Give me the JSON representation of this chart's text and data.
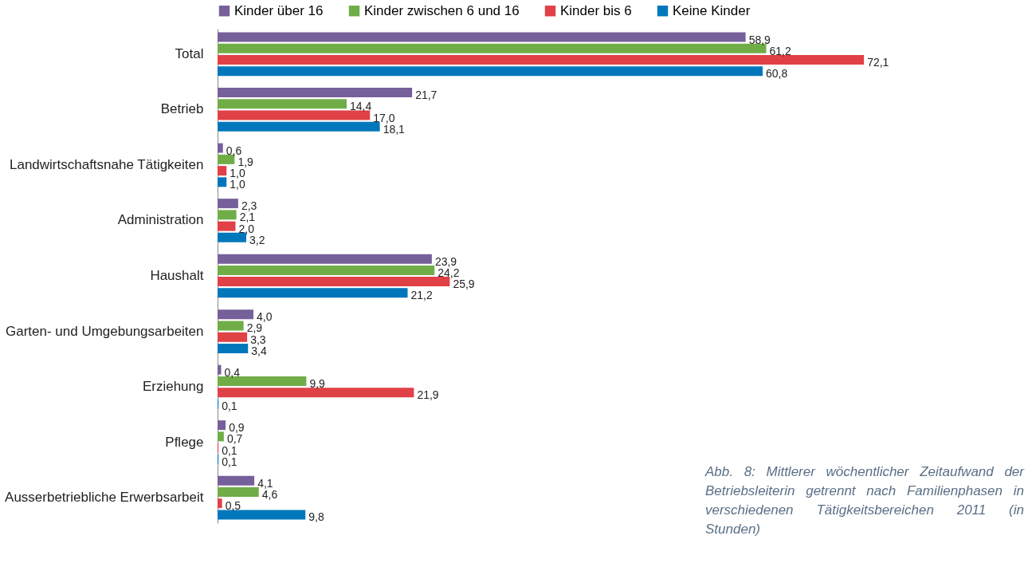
{
  "chart_data": {
    "type": "bar",
    "orientation": "horizontal",
    "legend": "top",
    "tick_labels": "y",
    "grid": false,
    "categories": [
      "Total",
      "Betrieb",
      "Landwirtschaftsnahe Tätigkeiten",
      "Administration",
      "Haushalt",
      "Garten- und Umgebungsarbeiten",
      "Erziehung",
      "Pflege",
      "Ausserbetriebliche Erwerbsarbeit"
    ],
    "series": [
      {
        "name": "Kinder über 16",
        "color": "#76609a",
        "values": [
          58.9,
          21.7,
          0.6,
          2.3,
          23.9,
          4.0,
          0.4,
          0.9,
          4.1
        ],
        "value_labels": [
          "58,9",
          "21,7",
          "0,6",
          "2,3",
          "23,9",
          "4,0",
          "0,4",
          "0,9",
          "4,1"
        ]
      },
      {
        "name": "Kinder zwischen 6 und 16",
        "color": "#70ad47",
        "values": [
          61.2,
          14.4,
          1.9,
          2.1,
          24.2,
          2.9,
          9.9,
          0.7,
          4.6
        ],
        "value_labels": [
          "61,2",
          "14,4",
          "1,9",
          "2,1",
          "24,2",
          "2,9",
          "9,9",
          "0,7",
          "4,6"
        ]
      },
      {
        "name": "Kinder bis 6",
        "color": "#e04146",
        "values": [
          72.1,
          17.0,
          1.0,
          2.0,
          25.9,
          3.3,
          21.9,
          0.1,
          0.5
        ],
        "value_labels": [
          "72,1",
          "17,0",
          "1,0",
          "2,0",
          "25,9",
          "3,3",
          "21,9",
          "0,1",
          "0,5"
        ]
      },
      {
        "name": "Keine Kinder",
        "color": "#0077bb",
        "values": [
          60.8,
          18.1,
          1.0,
          3.2,
          21.2,
          3.4,
          0.1,
          0.1,
          9.8
        ],
        "value_labels": [
          "60,8",
          "18,1",
          "1,0",
          "3,2",
          "21,2",
          "3,4",
          "0,1",
          "0,1",
          "9,8"
        ]
      }
    ],
    "annotations": [
      "Abb. 8: Mittlerer wöchentlicher Zeitaufwand der Betriebsleiterin getrennt nach Familienphasen in verschiedenen Tätigkeitsbereichen 2011 (in Stunden)"
    ]
  }
}
